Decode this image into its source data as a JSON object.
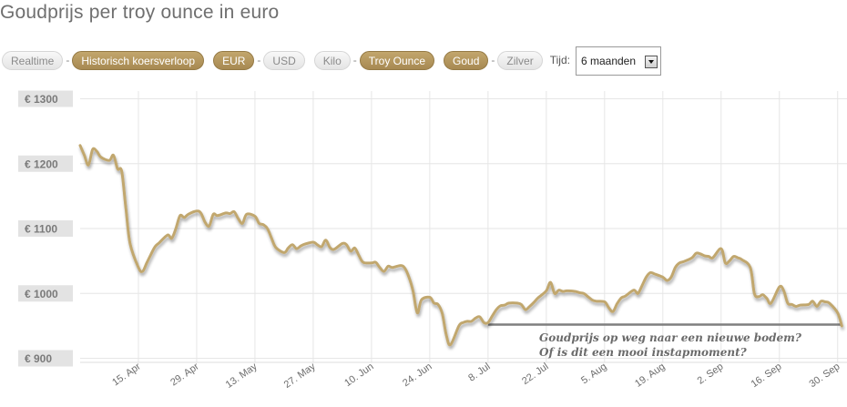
{
  "title": "Goudprijs per troy ounce in euro",
  "toolbar": {
    "realtime": "Realtime",
    "historisch": "Historisch koersverloop",
    "eur": "EUR",
    "usd": "USD",
    "kilo": "Kilo",
    "troy_ounce": "Troy Ounce",
    "goud": "Goud",
    "zilver": "Zilver",
    "separator": "-",
    "tijd_label": "Tijd:",
    "tijd_value": "6 maanden"
  },
  "colors": {
    "line": "#c1a76e",
    "active_button": "#b09560",
    "support_line": "#7f7f7f",
    "grid": "#e6e6e6"
  },
  "chart_data": {
    "type": "line",
    "title": "Goudprijs per troy ounce in euro",
    "xlabel": "",
    "ylabel": "",
    "x_unit": "date",
    "x_ticks": [
      "15. Apr",
      "29. Apr",
      "13. May",
      "27. May",
      "10. Jun",
      "24. Jun",
      "8. Jul",
      "22. Jul",
      "5. Aug",
      "19. Aug",
      "2. Sep",
      "16. Sep",
      "30. Sep"
    ],
    "y_ticks": [
      "€ 900",
      "€ 1000",
      "€ 1100",
      "€ 1200",
      "€ 1300"
    ],
    "ylim": [
      885,
      1315
    ],
    "xlim": [
      "2013-04-01",
      "2013-10-02"
    ],
    "grid": true,
    "series": [
      {
        "values": [
          [
            "2013-04-01",
            1228
          ],
          [
            "2013-04-02",
            1213
          ],
          [
            "2013-04-03",
            1198
          ],
          [
            "2013-04-04",
            1222
          ],
          [
            "2013-04-05",
            1219
          ],
          [
            "2013-04-06",
            1210
          ],
          [
            "2013-04-08",
            1205
          ],
          [
            "2013-04-09",
            1213
          ],
          [
            "2013-04-10",
            1192
          ],
          [
            "2013-04-11",
            1188
          ],
          [
            "2013-04-12",
            1130
          ],
          [
            "2013-04-13",
            1077
          ],
          [
            "2013-04-15",
            1040
          ],
          [
            "2013-04-16",
            1034
          ],
          [
            "2013-04-17",
            1047
          ],
          [
            "2013-04-18",
            1060
          ],
          [
            "2013-04-19",
            1072
          ],
          [
            "2013-04-20",
            1078
          ],
          [
            "2013-04-22",
            1090
          ],
          [
            "2013-04-23",
            1085
          ],
          [
            "2013-04-24",
            1100
          ],
          [
            "2013-04-25",
            1120
          ],
          [
            "2013-04-26",
            1117
          ],
          [
            "2013-04-27",
            1122
          ],
          [
            "2013-04-29",
            1127
          ],
          [
            "2013-04-30",
            1124
          ],
          [
            "2013-05-01",
            1110
          ],
          [
            "2013-05-02",
            1104
          ],
          [
            "2013-05-03",
            1122
          ],
          [
            "2013-05-04",
            1120
          ],
          [
            "2013-05-06",
            1124
          ],
          [
            "2013-05-07",
            1123
          ],
          [
            "2013-05-08",
            1126
          ],
          [
            "2013-05-09",
            1115
          ],
          [
            "2013-05-10",
            1108
          ],
          [
            "2013-05-11",
            1122
          ],
          [
            "2013-05-13",
            1119
          ],
          [
            "2013-05-14",
            1108
          ],
          [
            "2013-05-15",
            1106
          ],
          [
            "2013-05-16",
            1100
          ],
          [
            "2013-05-17",
            1085
          ],
          [
            "2013-05-18",
            1071
          ],
          [
            "2013-05-20",
            1063
          ],
          [
            "2013-05-21",
            1070
          ],
          [
            "2013-05-22",
            1075
          ],
          [
            "2013-05-23",
            1069
          ],
          [
            "2013-05-24",
            1073
          ],
          [
            "2013-05-25",
            1076
          ],
          [
            "2013-05-27",
            1079
          ],
          [
            "2013-05-28",
            1075
          ],
          [
            "2013-05-29",
            1072
          ],
          [
            "2013-05-30",
            1082
          ],
          [
            "2013-05-31",
            1071
          ],
          [
            "2013-06-01",
            1068
          ],
          [
            "2013-06-03",
            1077
          ],
          [
            "2013-06-04",
            1075
          ],
          [
            "2013-06-05",
            1065
          ],
          [
            "2013-06-06",
            1070
          ],
          [
            "2013-06-07",
            1058
          ],
          [
            "2013-06-08",
            1048
          ],
          [
            "2013-06-10",
            1047
          ],
          [
            "2013-06-11",
            1048
          ],
          [
            "2013-06-12",
            1040
          ],
          [
            "2013-06-13",
            1034
          ],
          [
            "2013-06-14",
            1042
          ],
          [
            "2013-06-15",
            1040
          ],
          [
            "2013-06-17",
            1043
          ],
          [
            "2013-06-18",
            1039
          ],
          [
            "2013-06-19",
            1025
          ],
          [
            "2013-06-20",
            1003
          ],
          [
            "2013-06-21",
            970
          ],
          [
            "2013-06-22",
            990
          ],
          [
            "2013-06-24",
            994
          ],
          [
            "2013-06-25",
            985
          ],
          [
            "2013-06-26",
            983
          ],
          [
            "2013-06-27",
            969
          ],
          [
            "2013-06-28",
            935
          ],
          [
            "2013-06-29",
            921
          ],
          [
            "2013-07-01",
            950
          ],
          [
            "2013-07-02",
            955
          ],
          [
            "2013-07-03",
            957
          ],
          [
            "2013-07-04",
            957
          ],
          [
            "2013-07-05",
            962
          ],
          [
            "2013-07-06",
            964
          ],
          [
            "2013-07-07",
            955
          ],
          [
            "2013-07-08",
            955
          ],
          [
            "2013-07-09",
            965
          ],
          [
            "2013-07-10",
            975
          ],
          [
            "2013-07-11",
            981
          ],
          [
            "2013-07-12",
            982
          ],
          [
            "2013-07-13",
            985
          ],
          [
            "2013-07-15",
            985
          ],
          [
            "2013-07-16",
            983
          ],
          [
            "2013-07-17",
            975
          ],
          [
            "2013-07-18",
            980
          ],
          [
            "2013-07-19",
            986
          ],
          [
            "2013-07-20",
            993
          ],
          [
            "2013-07-22",
            1004
          ],
          [
            "2013-07-23",
            1017
          ],
          [
            "2013-07-24",
            1000
          ],
          [
            "2013-07-25",
            1005
          ],
          [
            "2013-07-26",
            1003
          ],
          [
            "2013-07-27",
            1004
          ],
          [
            "2013-07-29",
            1003
          ],
          [
            "2013-07-30",
            1001
          ],
          [
            "2013-07-31",
            1000
          ],
          [
            "2013-08-01",
            995
          ],
          [
            "2013-08-02",
            990
          ],
          [
            "2013-08-03",
            988
          ],
          [
            "2013-08-05",
            987
          ],
          [
            "2013-08-06",
            978
          ],
          [
            "2013-08-07",
            972
          ],
          [
            "2013-08-08",
            984
          ],
          [
            "2013-08-09",
            993
          ],
          [
            "2013-08-10",
            996
          ],
          [
            "2013-08-12",
            1005
          ],
          [
            "2013-08-13",
            1000
          ],
          [
            "2013-08-14",
            1012
          ],
          [
            "2013-08-15",
            1025
          ],
          [
            "2013-08-16",
            1032
          ],
          [
            "2013-08-17",
            1030
          ],
          [
            "2013-08-19",
            1025
          ],
          [
            "2013-08-20",
            1020
          ],
          [
            "2013-08-21",
            1025
          ],
          [
            "2013-08-22",
            1040
          ],
          [
            "2013-08-23",
            1047
          ],
          [
            "2013-08-24",
            1049
          ],
          [
            "2013-08-26",
            1055
          ],
          [
            "2013-08-27",
            1062
          ],
          [
            "2013-08-28",
            1061
          ],
          [
            "2013-08-29",
            1058
          ],
          [
            "2013-08-30",
            1057
          ],
          [
            "2013-08-31",
            1055
          ],
          [
            "2013-09-02",
            1069
          ],
          [
            "2013-09-03",
            1047
          ],
          [
            "2013-09-04",
            1050
          ],
          [
            "2013-09-05",
            1057
          ],
          [
            "2013-09-06",
            1055
          ],
          [
            "2013-09-07",
            1052
          ],
          [
            "2013-09-09",
            1040
          ],
          [
            "2013-09-10",
            1000
          ],
          [
            "2013-09-11",
            995
          ],
          [
            "2013-09-12",
            998
          ],
          [
            "2013-09-13",
            992
          ],
          [
            "2013-09-14",
            985
          ],
          [
            "2013-09-16",
            1010
          ],
          [
            "2013-09-17",
            1005
          ],
          [
            "2013-09-18",
            985
          ],
          [
            "2013-09-19",
            983
          ],
          [
            "2013-09-20",
            980
          ],
          [
            "2013-09-21",
            982
          ],
          [
            "2013-09-23",
            983
          ],
          [
            "2013-09-24",
            988
          ],
          [
            "2013-09-25",
            980
          ],
          [
            "2013-09-26",
            988
          ],
          [
            "2013-09-27",
            987
          ],
          [
            "2013-09-28",
            985
          ],
          [
            "2013-09-30",
            970
          ],
          [
            "2013-10-01",
            950
          ]
        ]
      }
    ],
    "support_line": {
      "value": 952,
      "from": "2013-07-08",
      "to": "2013-10-01"
    },
    "annotation": {
      "line1": "Goudprijs op weg naar een nieuwe bodem?",
      "line2": "Of is dit een mooi instapmoment?"
    }
  }
}
